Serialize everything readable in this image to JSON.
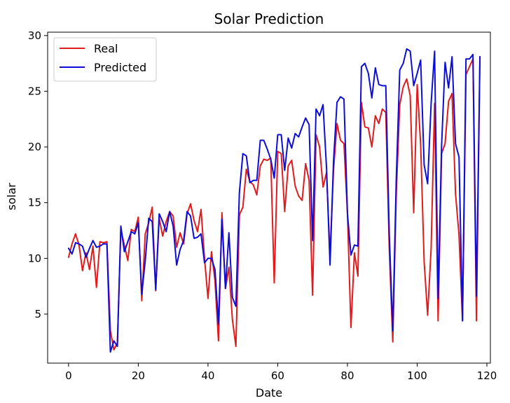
{
  "chart_data": {
    "type": "line",
    "title": "Solar Prediction",
    "xlabel": "Date",
    "ylabel": "solar",
    "xlim": [
      -6,
      121
    ],
    "ylim": [
      0.6,
      30.3
    ],
    "xticks": [
      0,
      20,
      40,
      60,
      80,
      100,
      120
    ],
    "yticks": [
      5,
      10,
      15,
      20,
      25,
      30
    ],
    "grid": false,
    "legend": "top-left",
    "x": [
      0,
      1,
      2,
      3,
      4,
      5,
      6,
      7,
      8,
      9,
      10,
      11,
      12,
      13,
      14,
      15,
      16,
      17,
      18,
      19,
      20,
      21,
      22,
      23,
      24,
      25,
      26,
      27,
      28,
      29,
      30,
      31,
      32,
      33,
      34,
      35,
      36,
      37,
      38,
      39,
      40,
      41,
      42,
      43,
      44,
      45,
      46,
      47,
      48,
      49,
      50,
      51,
      52,
      53,
      54,
      55,
      56,
      57,
      58,
      59,
      60,
      61,
      62,
      63,
      64,
      65,
      66,
      67,
      68,
      69,
      70,
      71,
      72,
      73,
      74,
      75,
      76,
      77,
      78,
      79,
      80,
      81,
      82,
      83,
      84,
      85,
      86,
      87,
      88,
      89,
      90,
      91,
      92,
      93,
      94,
      95,
      96,
      97,
      98,
      99,
      100,
      101,
      102,
      103,
      104,
      105,
      106,
      107,
      108,
      109,
      110,
      111,
      112,
      113,
      114,
      115,
      116,
      117,
      118
    ],
    "series": [
      {
        "name": "Real",
        "color": "#e31a1c",
        "values": [
          10.1,
          11.3,
          12.2,
          11.2,
          8.9,
          10.5,
          9.0,
          11.1,
          7.4,
          11.5,
          11.4,
          11.5,
          3.5,
          1.8,
          2.4,
          12.6,
          11.2,
          9.8,
          12.6,
          12.4,
          13.7,
          6.2,
          12.2,
          13.2,
          14.6,
          7.1,
          13.6,
          12.0,
          13.3,
          14.2,
          13.8,
          11.0,
          12.3,
          11.3,
          14.0,
          14.9,
          13.4,
          12.4,
          14.4,
          10.0,
          6.4,
          10.6,
          8.0,
          2.6,
          14.1,
          7.3,
          9.2,
          4.5,
          2.1,
          13.9,
          14.6,
          18.0,
          16.9,
          16.6,
          15.7,
          18.3,
          18.9,
          18.8,
          19.0,
          7.8,
          19.6,
          19.4,
          14.2,
          18.3,
          18.8,
          16.5,
          15.6,
          15.2,
          18.5,
          17.0,
          6.7,
          21.1,
          20.0,
          16.4,
          17.7,
          10.3,
          17.9,
          22.1,
          20.6,
          20.3,
          14.0,
          3.8,
          10.5,
          8.4,
          24.0,
          21.8,
          21.7,
          20.0,
          22.8,
          22.1,
          23.4,
          23.1,
          10.8,
          2.5,
          15.8,
          23.8,
          25.4,
          26.1,
          24.6,
          14.1,
          25.6,
          20.2,
          9.7,
          4.9,
          10.9,
          23.9,
          4.4,
          19.4,
          20.3,
          24.1,
          24.8,
          15.8,
          12.1,
          4.4,
          26.5,
          27.2,
          27.9,
          4.4,
          28.1
        ]
      },
      {
        "name": "Predicted",
        "color": "#0d0ddb",
        "values": [
          10.9,
          10.4,
          11.4,
          11.3,
          11.1,
          10.1,
          10.9,
          11.6,
          11.0,
          11.1,
          11.3,
          11.3,
          1.6,
          2.6,
          2.1,
          12.9,
          10.6,
          11.5,
          12.4,
          12.2,
          13.2,
          6.8,
          9.8,
          13.6,
          13.3,
          7.2,
          14.0,
          13.3,
          12.4,
          14.2,
          12.9,
          9.4,
          10.8,
          11.6,
          14.2,
          13.8,
          11.8,
          11.9,
          12.2,
          9.6,
          10.0,
          10.0,
          9.0,
          4.1,
          13.5,
          7.3,
          12.3,
          6.5,
          5.7,
          15.9,
          19.4,
          19.2,
          16.8,
          17.0,
          17.0,
          20.6,
          20.6,
          19.8,
          18.9,
          17.2,
          21.1,
          21.1,
          17.9,
          20.8,
          19.9,
          21.2,
          20.9,
          21.8,
          22.6,
          22.0,
          11.6,
          23.4,
          22.8,
          23.8,
          18.1,
          9.4,
          18.7,
          24.0,
          24.5,
          24.3,
          14.0,
          10.3,
          11.2,
          11.1,
          27.2,
          27.5,
          26.6,
          24.4,
          27.1,
          25.6,
          25.5,
          25.5,
          12.1,
          3.5,
          17.1,
          26.9,
          27.5,
          28.8,
          28.6,
          25.5,
          26.6,
          27.8,
          18.4,
          16.7,
          23.9,
          28.6,
          6.4,
          20.1,
          27.6,
          25.3,
          28.1,
          20.3,
          19.1,
          4.4,
          27.9,
          27.9,
          28.3,
          6.6,
          28.1
        ]
      }
    ]
  }
}
